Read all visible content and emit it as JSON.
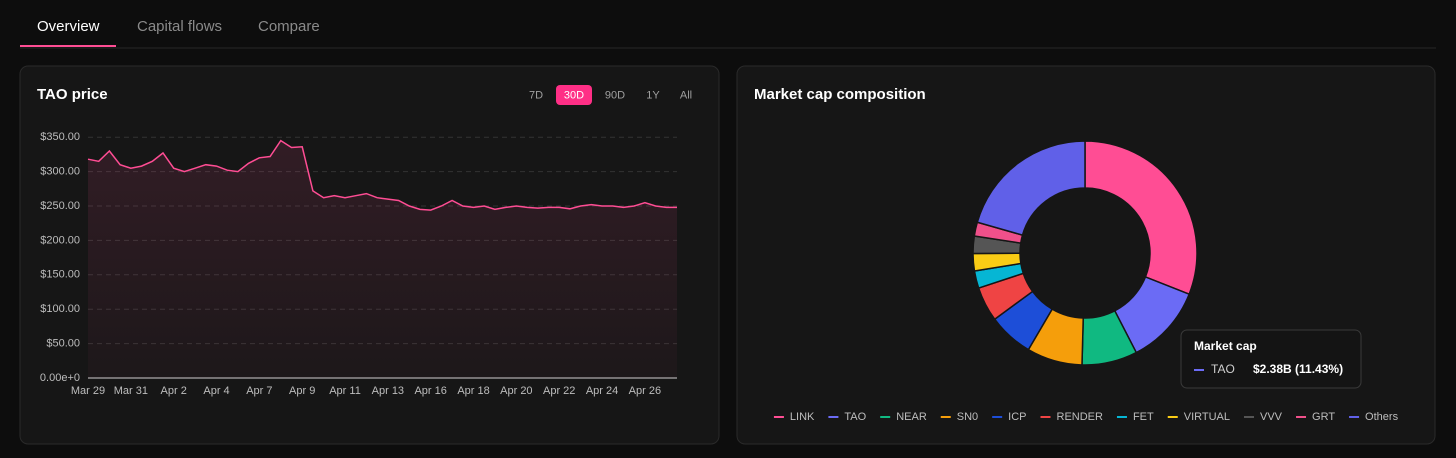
{
  "tabs": [
    "Overview",
    "Capital flows",
    "Compare"
  ],
  "range_buttons": [
    "7D",
    "30D",
    "90D",
    "1Y",
    "All"
  ],
  "active_range": 1,
  "chart_data": [
    {
      "type": "line",
      "title": "TAO price",
      "color": "#ff4d94",
      "categories": [
        "Mar 29",
        null,
        null,
        null,
        "Mar 31",
        null,
        null,
        null,
        "Apr 2",
        null,
        null,
        null,
        "Apr 4",
        null,
        null,
        null,
        "Apr 7",
        null,
        null,
        null,
        "Apr 9",
        null,
        null,
        null,
        "Apr 11",
        null,
        null,
        null,
        "Apr 13",
        null,
        null,
        null,
        "Apr 16",
        null,
        null,
        null,
        "Apr 18",
        null,
        null,
        null,
        "Apr 20",
        null,
        null,
        null,
        "Apr 22",
        null,
        null,
        null,
        "Apr 24",
        null,
        null,
        null,
        "Apr 26",
        null,
        null,
        null
      ],
      "values": [
        318,
        315,
        330,
        310,
        305,
        308,
        315,
        327,
        305,
        300,
        305,
        310,
        308,
        302,
        300,
        312,
        320,
        322,
        345,
        335,
        336,
        272,
        262,
        265,
        262,
        265,
        268,
        262,
        260,
        258,
        250,
        245,
        244,
        250,
        258,
        250,
        248,
        250,
        245,
        248,
        250,
        248,
        247,
        248,
        248,
        246,
        250,
        252,
        250,
        250,
        248,
        250,
        255,
        250,
        248,
        248
      ],
      "ylim": [
        0,
        375
      ],
      "yticks": [
        {
          "value": 0,
          "label": "0.00e+0"
        },
        {
          "value": 50,
          "label": "$50.00"
        },
        {
          "value": 100,
          "label": "$100.00"
        },
        {
          "value": 150,
          "label": "$150.00"
        },
        {
          "value": 200,
          "label": "$200.00"
        },
        {
          "value": 250,
          "label": "$250.00"
        },
        {
          "value": 300,
          "label": "$300.00"
        },
        {
          "value": 350,
          "label": "$350.00"
        }
      ],
      "grid": true
    },
    {
      "type": "donut",
      "title": "Market cap composition",
      "legend": "bottom",
      "series": [
        {
          "name": "LINK",
          "color": "#ff4d94",
          "value": 31
        },
        {
          "name": "TAO",
          "color": "#6b6bf5",
          "value": 11.43
        },
        {
          "name": "NEAR",
          "color": "#10b981",
          "value": 8
        },
        {
          "name": "SN0",
          "color": "#f59e0b",
          "value": 8
        },
        {
          "name": "ICP",
          "color": "#1d4ed8",
          "value": 6.5
        },
        {
          "name": "RENDER",
          "color": "#ef4444",
          "value": 5
        },
        {
          "name": "FET",
          "color": "#06b6d4",
          "value": 2.5
        },
        {
          "name": "VIRTUAL",
          "color": "#facc15",
          "value": 2.5
        },
        {
          "name": "VVV",
          "color": "#555555",
          "value": 2.5
        },
        {
          "name": "GRT",
          "color": "#f0508a",
          "value": 2
        },
        {
          "name": "Others",
          "color": "#6060e8",
          "value": 20.57
        }
      ]
    }
  ],
  "tooltip": {
    "title": "Market cap",
    "series": 1,
    "text": "$2.38B (11.43%)"
  }
}
